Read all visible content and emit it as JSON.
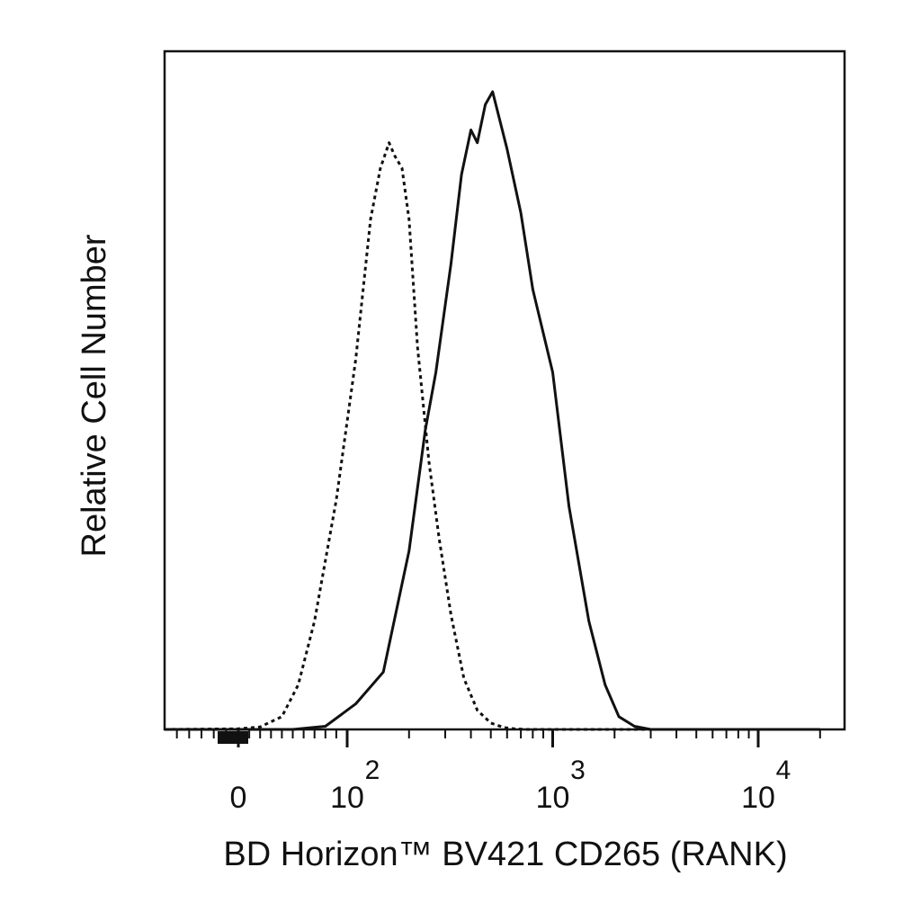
{
  "chart_data": {
    "type": "line",
    "title": "",
    "xlabel": "BD Horizon™ BV421 CD265 (RANK)",
    "ylabel": "Relative Cell Number",
    "x_scale": "biexponential",
    "xlim": [
      -60,
      20000
    ],
    "ylim": [
      0,
      100
    ],
    "grid": false,
    "legend": "none",
    "x_ticks": [
      {
        "value": 0,
        "base": "0",
        "exp": ""
      },
      {
        "value": 100,
        "base": "10",
        "exp": "2"
      },
      {
        "value": 1000,
        "base": "10",
        "exp": "3"
      },
      {
        "value": 10000,
        "base": "10",
        "exp": "4"
      }
    ],
    "series": [
      {
        "style": "dotted",
        "color": "#111111",
        "x": [
          -60,
          0,
          20,
          40,
          55,
          70,
          90,
          110,
          130,
          145,
          160,
          170,
          185,
          200,
          220,
          250,
          280,
          320,
          370,
          430,
          500,
          580,
          650,
          750,
          900,
          20000
        ],
        "y": [
          0,
          0.1,
          0.4,
          2,
          7,
          17,
          36,
          58,
          80,
          88,
          92,
          90,
          88,
          80,
          60,
          42,
          30,
          18,
          8,
          3,
          1,
          0.3,
          0.1,
          0,
          0,
          0
        ],
        "values": [
          0,
          0.1,
          0.4,
          2,
          7,
          17,
          36,
          58,
          80,
          88,
          92,
          90,
          88,
          80,
          60,
          42,
          30,
          18,
          8,
          3,
          1,
          0.3,
          0.1,
          0,
          0,
          0
        ]
      },
      {
        "style": "solid",
        "color": "#111111",
        "x": [
          -60,
          50,
          80,
          110,
          150,
          200,
          240,
          270,
          320,
          360,
          400,
          430,
          470,
          510,
          600,
          700,
          800,
          1000,
          1200,
          1500,
          1800,
          2100,
          2500,
          3000,
          20000
        ],
        "y": [
          0,
          0,
          0.5,
          4,
          9,
          28,
          47,
          56,
          73,
          87,
          94,
          92,
          98,
          100,
          91,
          81,
          69,
          56,
          35,
          17,
          7,
          2,
          0.5,
          0,
          0
        ],
        "values": [
          0,
          0,
          0.5,
          4,
          9,
          28,
          47,
          56,
          73,
          87,
          94,
          92,
          98,
          100,
          91,
          81,
          69,
          56,
          35,
          17,
          7,
          2,
          0.5,
          0,
          0
        ]
      }
    ]
  }
}
